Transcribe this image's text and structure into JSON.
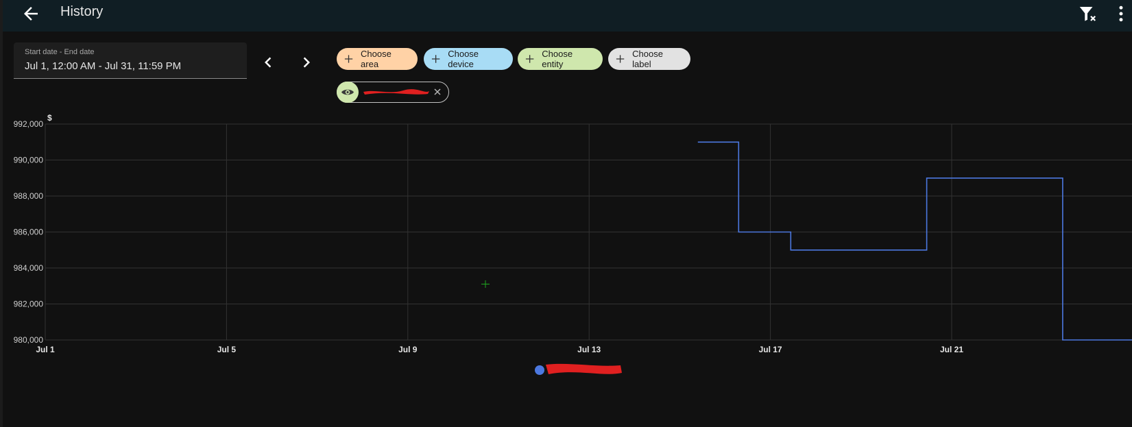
{
  "header": {
    "title": "History",
    "back_icon": "arrow-left-icon",
    "filter_icon": "filter-remove-icon",
    "menu_icon": "dots-vertical-icon",
    "background": "#101e24"
  },
  "date_range": {
    "label": "Start date - End date",
    "value": "Jul 1, 12:00 AM - Jul 31, 11:59 PM"
  },
  "navigation": {
    "prev_icon": "chevron-left-icon",
    "next_icon": "chevron-right-icon"
  },
  "target_pickers": [
    {
      "label": "Choose area",
      "color": "#ffd2a6",
      "icon": "plus-icon"
    },
    {
      "label": "Choose device",
      "color": "#a8dcf5",
      "icon": "plus-icon"
    },
    {
      "label": "Choose entity",
      "color": "#cfe7ad",
      "icon": "plus-icon"
    },
    {
      "label": "Choose label",
      "color": "#e2e2e2",
      "icon": "plus-icon"
    }
  ],
  "selected_entity": {
    "icon": "eye-icon",
    "name_redacted": true,
    "remove_icon": "close-icon"
  },
  "chart_data": {
    "type": "line",
    "step": true,
    "unit": "$",
    "ylim": [
      980000,
      992000
    ],
    "y_ticks": [
      "992,000",
      "990,000",
      "988,000",
      "986,000",
      "984,000",
      "982,000",
      "980,000"
    ],
    "y_tick_values": [
      992000,
      990000,
      988000,
      986000,
      984000,
      982000,
      980000
    ],
    "x_ticks": [
      "Jul 1",
      "Jul 5",
      "Jul 9",
      "Jul 13",
      "Jul 17",
      "Jul 21"
    ],
    "x_tick_days": [
      1,
      5,
      9,
      13,
      17,
      21
    ],
    "x_range_days": [
      1,
      25.0
    ],
    "grid": true,
    "series": [
      {
        "color": "#4c78e0",
        "x_days": [
          15.4,
          16.3,
          16.3,
          17.45,
          17.45,
          20.45,
          20.45,
          23.45,
          23.45,
          25.0
        ],
        "y": [
          991000,
          991000,
          986000,
          986000,
          985000,
          985000,
          989000,
          989000,
          980000,
          980000
        ]
      }
    ],
    "legend": {
      "placement": "bottom-center",
      "marker_color": "#4c78e0",
      "name_redacted": true
    },
    "crosshair_color": "#1fa81f"
  }
}
